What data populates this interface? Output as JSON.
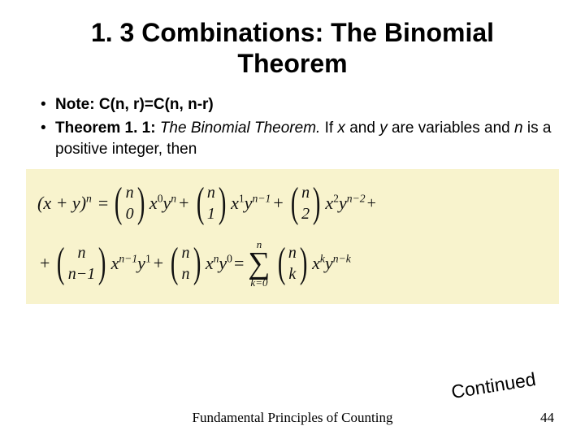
{
  "title": "1. 3 Combinations: The Binomial Theorem",
  "bullets": [
    {
      "prefix": "Note:",
      "rest": " C(n, r)=C(n, n-r)"
    },
    {
      "prefix": "Theorem 1. 1:",
      "theorem_name": "The Binomial Theorem.",
      "tail1": " If ",
      "var1": "x",
      "mid1": " and ",
      "var2": "y",
      "tail2": " are variables and ",
      "var3": "n",
      "tail3": " is a positive integer, then"
    }
  ],
  "formula": {
    "background": "#f8f3cd",
    "lhs_base": "(x + y)",
    "lhs_exp": "n",
    "row1_terms": [
      {
        "top": "n",
        "bot": "0",
        "coeff": "x",
        "e1": "0",
        "coeff2": "y",
        "e2": "n"
      },
      {
        "top": "n",
        "bot": "1",
        "coeff": "x",
        "e1": "1",
        "coeff2": "y",
        "e2": "n−1"
      },
      {
        "top": "n",
        "bot": "2",
        "coeff": "x",
        "e1": "2",
        "coeff2": "y",
        "e2": "n−2"
      }
    ],
    "row1_trail": "+",
    "row2_lead": "+",
    "row2_terms": [
      {
        "top": "n",
        "bot": "n−1",
        "coeff": "x",
        "e1": "n−1",
        "coeff2": "y",
        "e2": "1"
      },
      {
        "top": "n",
        "bot": "n",
        "coeff": "x",
        "e1": "n",
        "coeff2": "y",
        "e2": "0"
      }
    ],
    "sum_top": "n",
    "sum_bot": "k=0",
    "sum_binom_top": "n",
    "sum_binom_bot": "k",
    "sum_tail_x": "x",
    "sum_tail_xe": "k",
    "sum_tail_y": "y",
    "sum_tail_ye": "n−k"
  },
  "continued": "Continued",
  "footer": "Fundamental Principles of Counting",
  "page": "44",
  "colors": {
    "bg": "#ffffff",
    "text": "#000000"
  }
}
